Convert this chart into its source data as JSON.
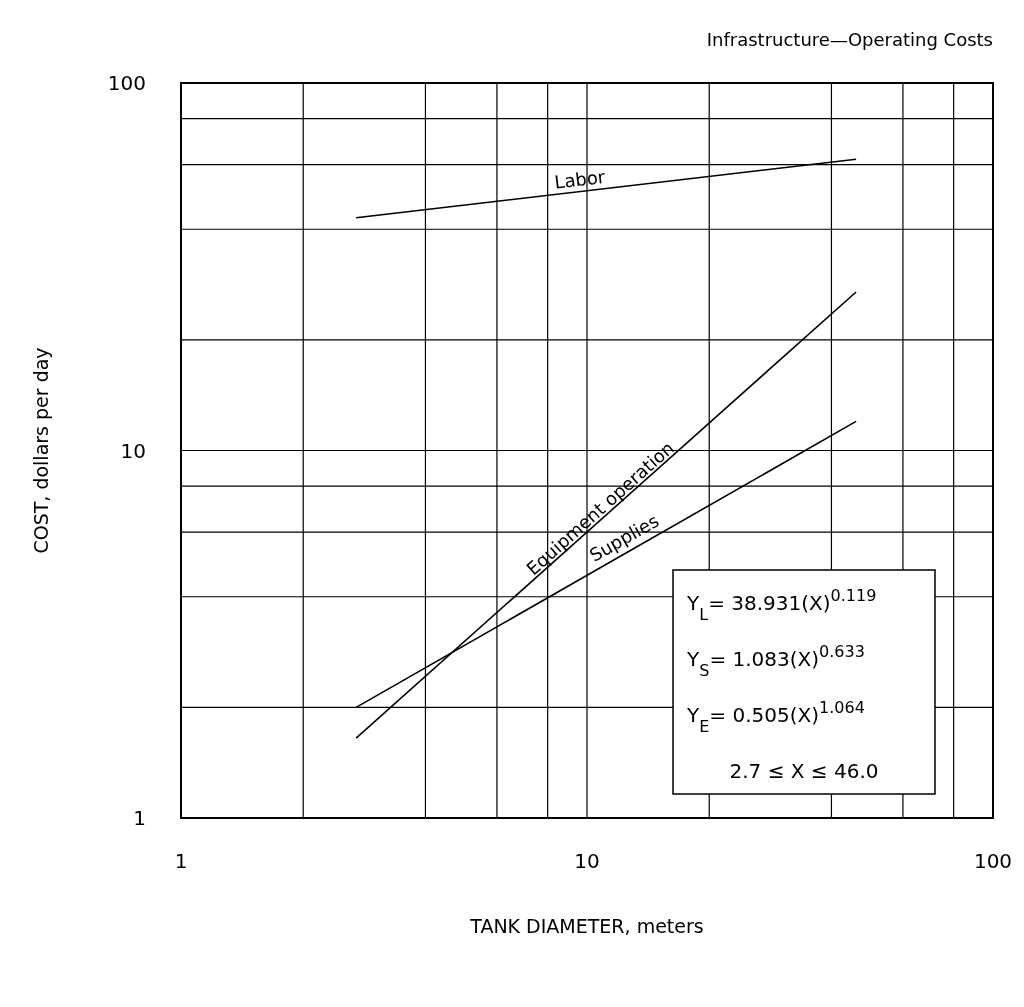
{
  "chart_data": {
    "type": "line",
    "title": "Infrastructure—Operating Costs",
    "xlabel": "TANK DIAMETER, meters",
    "ylabel": "COST, dollars per day",
    "log": "xy",
    "grid": true,
    "legend": false,
    "marker": "none",
    "line_style": "solid",
    "x": [
      2.7,
      46
    ],
    "xlim": [
      1,
      100
    ],
    "ylim": [
      1,
      100
    ],
    "xticks": [
      1,
      {
        "value": 2,
        "label": null
      },
      {
        "value": 4,
        "label": null
      },
      {
        "value": 6,
        "label": null
      },
      {
        "value": 8,
        "label": null
      },
      10,
      {
        "value": 20,
        "label": null
      },
      {
        "value": 40,
        "label": null
      },
      {
        "value": 60,
        "label": null
      },
      {
        "value": 80,
        "label": null
      },
      100
    ],
    "yticks": [
      1,
      {
        "value": 2,
        "label": null
      },
      {
        "value": 4,
        "label": null
      },
      {
        "value": 6,
        "label": null
      },
      {
        "value": 8,
        "label": null
      },
      10,
      {
        "value": 20,
        "label": null
      },
      {
        "value": 40,
        "label": null
      },
      {
        "value": 60,
        "label": null
      },
      {
        "value": 80,
        "label": null
      },
      100
    ],
    "series": [
      {
        "name": "Labor",
        "color": "#000000",
        "values": [
          43,
          62
        ]
      },
      {
        "name": "Equipment operation",
        "color": "#000000",
        "values": [
          1.65,
          27
        ]
      },
      {
        "name": "Supplies",
        "color": "#000000",
        "values": [
          2.0,
          12
        ]
      }
    ],
    "annotations": [
      "Y$_{L}$= 38.931(X)$^{0.119}$",
      "Y$_{S}$=  1.083(X)$^{0.633}$",
      "Y$_{E}$=  0.505(X)$^{1.064}$",
      "2.7 ≤ X ≤ 46.0"
    ]
  }
}
